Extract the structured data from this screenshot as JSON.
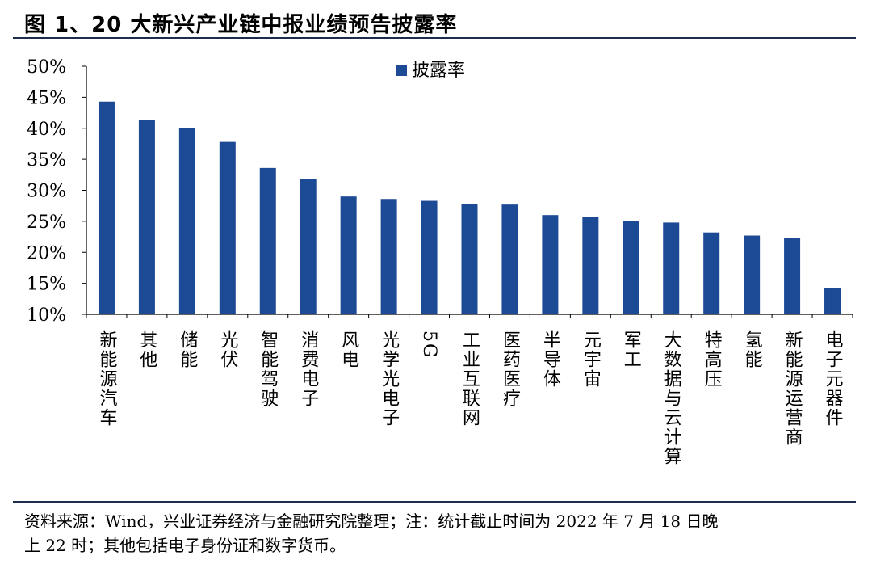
{
  "title": "图 1、20 大新兴产业链中报业绩预告披露率",
  "footer": {
    "line1": "资料来源：Wind，兴业证券经济与金融研究院整理；注：统计截止时间为 2022 年 7 月 18 日晚",
    "line2": "上 22 时；其他包括电子身份证和数字货币。"
  },
  "colors": {
    "bar": "#1c4a95",
    "rule": "#1f2a4d"
  },
  "chart_data": {
    "type": "bar",
    "title": "",
    "xlabel": "",
    "ylabel": "",
    "ylim": [
      0.1,
      0.5
    ],
    "yticks": [
      {
        "value": 0.1,
        "label": "10%"
      },
      {
        "value": 0.15,
        "label": "15%"
      },
      {
        "value": 0.2,
        "label": "20%"
      },
      {
        "value": 0.25,
        "label": "25%"
      },
      {
        "value": 0.3,
        "label": "30%"
      },
      {
        "value": 0.35,
        "label": "35%"
      },
      {
        "value": 0.4,
        "label": "40%"
      },
      {
        "value": 0.45,
        "label": "45%"
      },
      {
        "value": 0.5,
        "label": "50%"
      }
    ],
    "grid": false,
    "legend": "top-center",
    "categories": [
      "新能源汽车",
      "其他",
      "储能",
      "光伏",
      "智能驾驶",
      "消费电子",
      "风电",
      "光学光电子",
      "5G",
      "工业互联网",
      "医药医疗",
      "半导体",
      "元宇宙",
      "军工",
      "大数据与云计算",
      "特高压",
      "氢能",
      "新能源运营商",
      "电子元器件"
    ],
    "series": [
      {
        "name": "披露率",
        "values": [
          0.443,
          0.413,
          0.4,
          0.378,
          0.336,
          0.318,
          0.29,
          0.286,
          0.283,
          0.278,
          0.277,
          0.26,
          0.257,
          0.251,
          0.248,
          0.232,
          0.227,
          0.223,
          0.143
        ]
      }
    ]
  }
}
